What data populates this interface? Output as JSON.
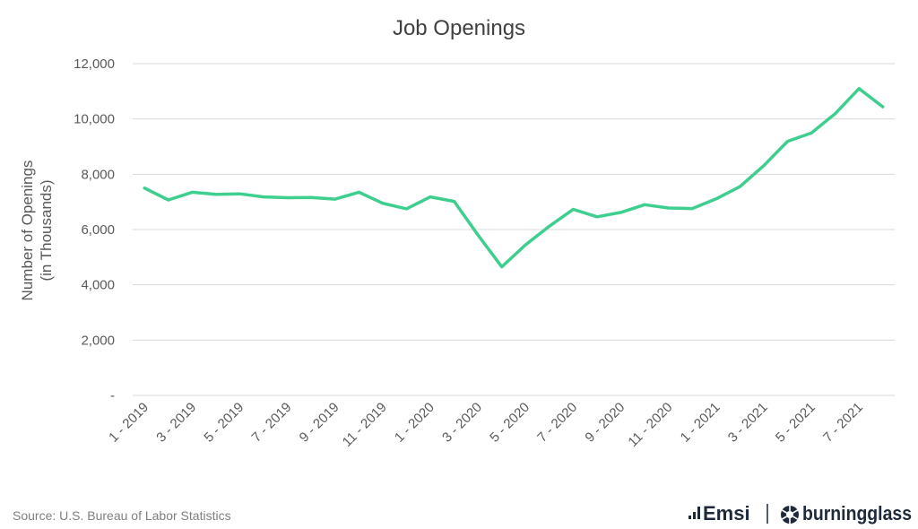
{
  "chart_data": {
    "type": "line",
    "title": "Job Openings",
    "ylabel_lines": [
      "Number of Openings",
      "(in Thousands)"
    ],
    "xlabel": "",
    "ylim": [
      0,
      12000
    ],
    "yticks": [
      0,
      2000,
      4000,
      6000,
      8000,
      10000,
      12000
    ],
    "ytick_labels": [
      "-",
      "2,000",
      "4,000",
      "6,000",
      "8,000",
      "10,000",
      "12,000"
    ],
    "grid": true,
    "line_color": "#3ecf8e",
    "x": [
      "1 - 2019",
      "2 - 2019",
      "3 - 2019",
      "4 - 2019",
      "5 - 2019",
      "6 - 2019",
      "7 - 2019",
      "8 - 2019",
      "9 - 2019",
      "10 - 2019",
      "11 - 2019",
      "12 - 2019",
      "1 - 2020",
      "2 - 2020",
      "3 - 2020",
      "4 - 2020",
      "5 - 2020",
      "6 - 2020",
      "7 - 2020",
      "8 - 2020",
      "9 - 2020",
      "10 - 2020",
      "11 - 2020",
      "12 - 2020",
      "1 - 2021",
      "2 - 2021",
      "3 - 2021",
      "4 - 2021",
      "5 - 2021",
      "6 - 2021",
      "7 - 2021",
      "8 - 2021"
    ],
    "xtick_labels": [
      "1 - 2019",
      "3 - 2019",
      "5 - 2019",
      "7 - 2019",
      "9 - 2019",
      "11 - 2019",
      "1 - 2020",
      "3 - 2020",
      "5 - 2020",
      "7 - 2020",
      "9 - 2020",
      "11 - 2020",
      "1 - 2021",
      "3 - 2021",
      "5 - 2021",
      "7 - 2021"
    ],
    "values": [
      7500,
      7070,
      7350,
      7270,
      7290,
      7180,
      7150,
      7160,
      7100,
      7350,
      6950,
      6750,
      7180,
      7020,
      5800,
      4650,
      5450,
      6120,
      6730,
      6460,
      6620,
      6900,
      6780,
      6760,
      7110,
      7550,
      8310,
      9190,
      9490,
      10190,
      11100,
      10440
    ]
  },
  "footer": {
    "source": "Source:  U.S. Bureau of Labor Statistics",
    "logo_emsi": "Emsi",
    "logo_burningglass": "burningglass"
  }
}
